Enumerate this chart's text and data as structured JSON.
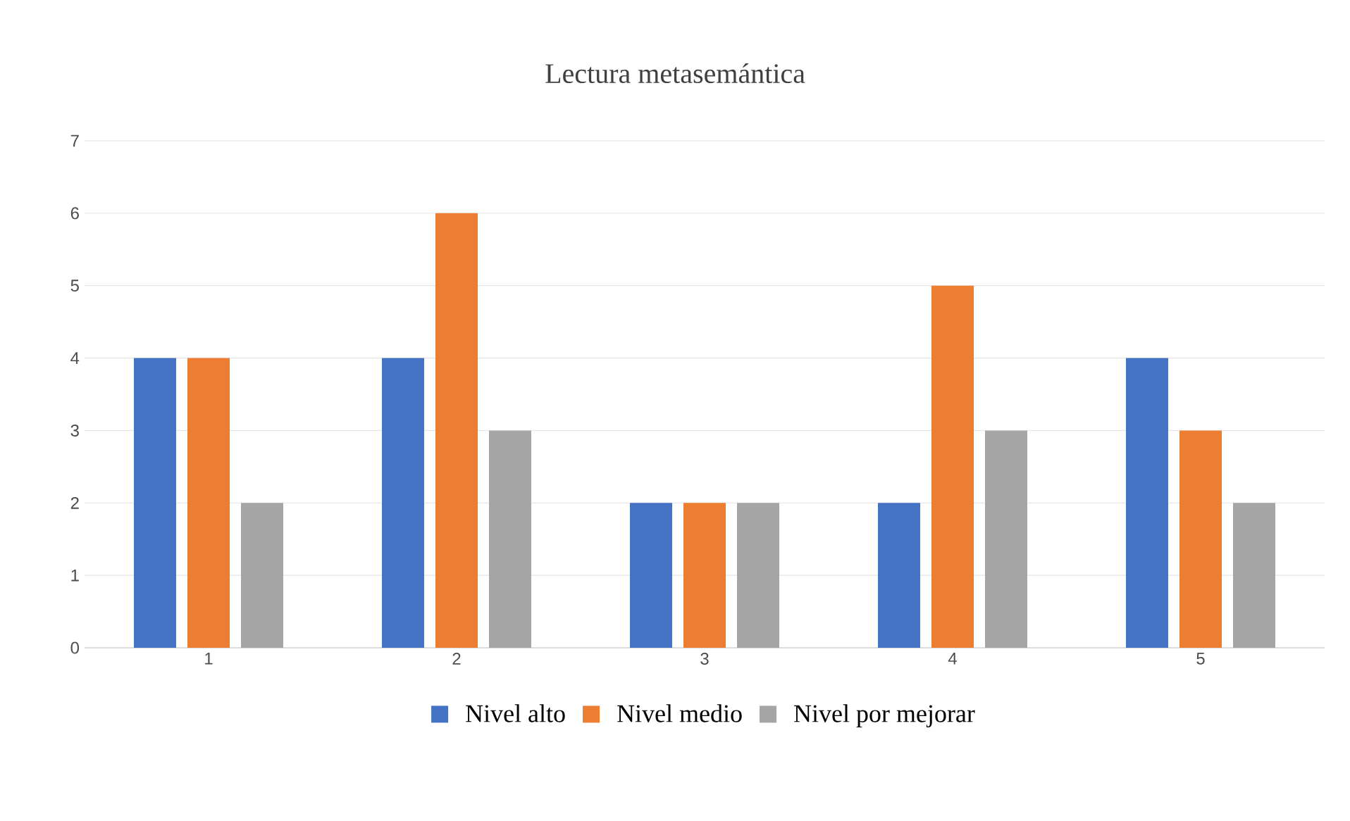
{
  "chart_data": {
    "type": "bar",
    "title": "Lectura metasemántica",
    "categories": [
      "1",
      "2",
      "3",
      "4",
      "5"
    ],
    "series": [
      {
        "name": "Nivel alto",
        "color": "#4472c4",
        "values": [
          4,
          4,
          2,
          2,
          4
        ]
      },
      {
        "name": "Nivel medio",
        "color": "#ed7d31",
        "values": [
          4,
          6,
          2,
          5,
          3
        ]
      },
      {
        "name": "Nivel por mejorar",
        "color": "#a5a5a5",
        "values": [
          2,
          3,
          2,
          3,
          2
        ]
      }
    ],
    "ylim": [
      0,
      7
    ],
    "yticks": [
      0,
      1,
      2,
      3,
      4,
      5,
      6,
      7
    ],
    "grid": "y",
    "legend": "bottom"
  }
}
